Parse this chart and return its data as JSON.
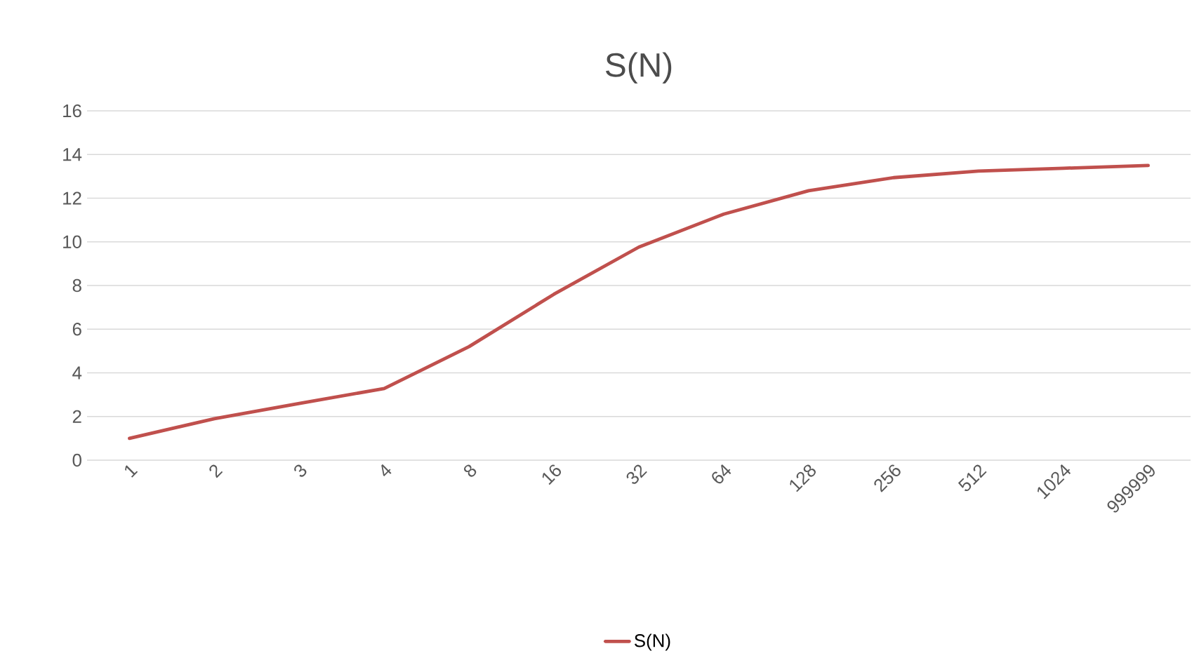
{
  "chart_data": {
    "type": "line",
    "title": "S(N)",
    "categories": [
      "1",
      "2",
      "3",
      "4",
      "8",
      "16",
      "32",
      "64",
      "128",
      "256",
      "512",
      "1024",
      "999999"
    ],
    "series": [
      {
        "name": "S(N)",
        "color": "#c0504d",
        "values": [
          1.0,
          1.9,
          2.6,
          3.28,
          5.2,
          7.6,
          9.76,
          11.27,
          12.34,
          12.94,
          13.24,
          13.37,
          13.5
        ]
      }
    ],
    "ylim": [
      0,
      16
    ],
    "yticks": [
      0,
      2,
      4,
      6,
      8,
      10,
      12,
      14,
      16
    ],
    "grid": "y",
    "legend": "bottom",
    "marker": "none",
    "line_style": "solid"
  }
}
